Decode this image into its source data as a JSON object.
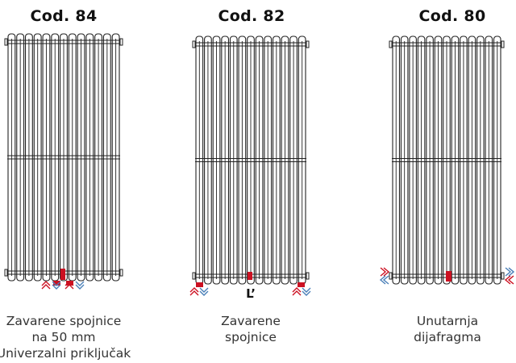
{
  "diagrams": [
    {
      "code": "Cod. 84",
      "caption_lines": [
        "Zavarene spojnice",
        "na 50 mm",
        "Univerzalni priključak"
      ]
    },
    {
      "code": "Cod. 82",
      "marker": "L’",
      "caption_lines": [
        "Zavarene",
        "spojnice"
      ]
    },
    {
      "code": "Cod. 80",
      "caption_lines": [
        "Unutarnja",
        "dijafragma"
      ]
    }
  ],
  "colors": {
    "outline": "#222222",
    "connector": "#cc1122",
    "arrow_red": "#cc1122",
    "arrow_blue": "#4a7fb8"
  }
}
